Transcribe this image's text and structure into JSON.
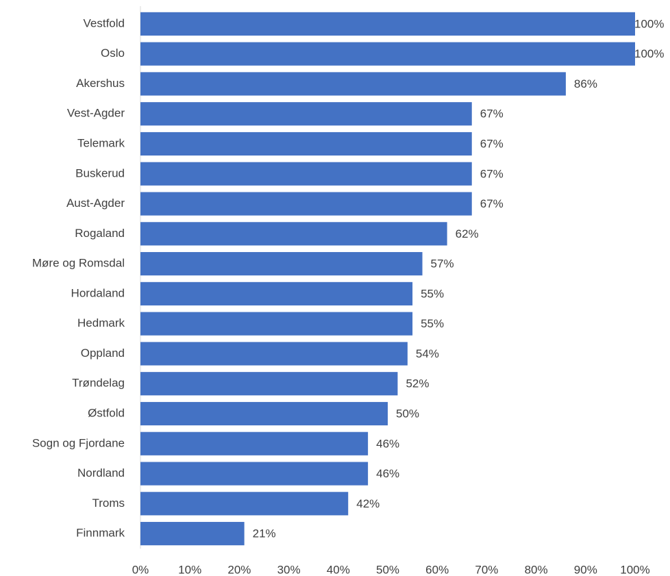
{
  "chart_data": {
    "type": "bar",
    "orientation": "horizontal",
    "categories": [
      "Vestfold",
      "Oslo",
      "Akershus",
      "Vest-Agder",
      "Telemark",
      "Buskerud",
      "Aust-Agder",
      "Rogaland",
      "Møre og Romsdal",
      "Hordaland",
      "Hedmark",
      "Oppland",
      "Trøndelag",
      "Østfold",
      "Sogn og Fjordane",
      "Nordland",
      "Troms",
      "Finnmark"
    ],
    "values": [
      100,
      100,
      86,
      67,
      67,
      67,
      67,
      62,
      57,
      55,
      55,
      54,
      52,
      50,
      46,
      46,
      42,
      21
    ],
    "value_labels": [
      "100%",
      "100%",
      "86%",
      "67%",
      "67%",
      "67%",
      "67%",
      "62%",
      "57%",
      "55%",
      "55%",
      "54%",
      "52%",
      "50%",
      "46%",
      "46%",
      "42%",
      "21%"
    ],
    "color": "#4472c4",
    "xlim": [
      0,
      100
    ],
    "xticks": [
      {
        "value": 0,
        "label": "0%"
      },
      {
        "value": 10,
        "label": "10%"
      },
      {
        "value": 20,
        "label": "20%"
      },
      {
        "value": 30,
        "label": "30%"
      },
      {
        "value": 40,
        "label": "40%"
      },
      {
        "value": 50,
        "label": "50%"
      },
      {
        "value": 60,
        "label": "60%"
      },
      {
        "value": 70,
        "label": "70%"
      },
      {
        "value": 80,
        "label": "80%"
      },
      {
        "value": 90,
        "label": "90%"
      },
      {
        "value": 100,
        "label": "100%"
      }
    ],
    "grid": false
  }
}
